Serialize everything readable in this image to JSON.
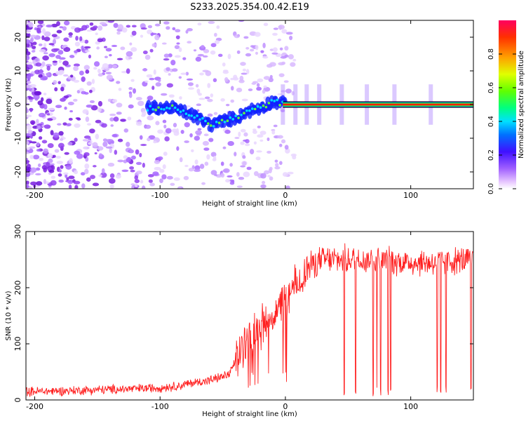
{
  "title": "S233.2025.354.00.42.E19",
  "chart_data": [
    {
      "type": "heatmap",
      "xlabel": "Height of straight line (km)",
      "ylabel": "Frequency (Hz)",
      "xlim": [
        -207,
        150
      ],
      "ylim": [
        -25,
        25
      ],
      "xticks": [
        -200,
        -100,
        0,
        100
      ],
      "yticks": [
        20,
        10,
        0,
        -10,
        -20
      ],
      "colorbar": {
        "label": "Normalized spectral amplitude",
        "range": [
          0,
          1
        ],
        "ticks": [
          0.0,
          0.2,
          0.4,
          0.6,
          0.8
        ]
      },
      "signal_track": {
        "description_points_km": [
          -110,
          -90,
          -75,
          -60,
          -50,
          -40,
          -30,
          -20,
          -10,
          0,
          10,
          50,
          100,
          150
        ],
        "frequency_hz": [
          -1,
          -1,
          -3,
          -6,
          -5,
          -4,
          -2,
          -1,
          1,
          0,
          0,
          0,
          0,
          0
        ]
      }
    },
    {
      "type": "line",
      "xlabel": "Height of straight line (km)",
      "ylabel": "SNR (10 * v/v)",
      "xlim": [
        -207,
        150
      ],
      "ylim": [
        0,
        300
      ],
      "xticks": [
        -200,
        -100,
        0,
        100
      ],
      "yticks": [
        0,
        100,
        200,
        300
      ],
      "series": [
        {
          "name": "SNR",
          "color": "#ff2020",
          "x": [
            -207,
            -180,
            -150,
            -120,
            -100,
            -85,
            -75,
            -60,
            -45,
            -35,
            -30,
            -20,
            -10,
            0,
            10,
            20,
            30,
            40,
            60,
            80,
            100,
            120,
            150
          ],
          "y": [
            15,
            16,
            18,
            20,
            22,
            25,
            30,
            35,
            45,
            90,
            110,
            130,
            150,
            175,
            210,
            240,
            250,
            250,
            250,
            248,
            245,
            245,
            250
          ]
        }
      ]
    }
  ]
}
